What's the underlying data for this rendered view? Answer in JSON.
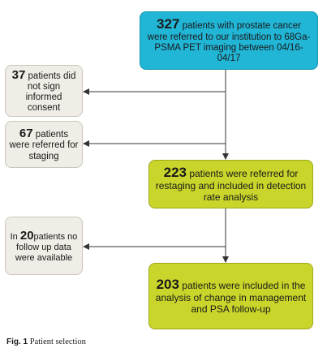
{
  "boxes": {
    "top": {
      "number": "327",
      "text": "patients with prostate cancer were referred to our institution to 68Ga-PSMA PET imaging between 04/16-04/17"
    },
    "excluded_consent": {
      "number": "37",
      "text": "patients did not sign informed consent"
    },
    "excluded_staging": {
      "number": "67",
      "text": "patients were referred for staging"
    },
    "restaging": {
      "number": "223",
      "text": "patients were referred for restaging and included in detection rate analysis"
    },
    "no_followup": {
      "prefix": "In",
      "number": "20",
      "text": "patients no follow up data were available"
    },
    "final": {
      "number": "203",
      "text": "patients were included in the analysis of change in management and PSA follow-up"
    }
  },
  "caption": {
    "label": "Fig. 1",
    "text": "Patient selection"
  },
  "colors": {
    "top_box": "#21b5d6",
    "green_box": "#c9d52a",
    "gray_box": "#efede6",
    "line": "#333333"
  }
}
